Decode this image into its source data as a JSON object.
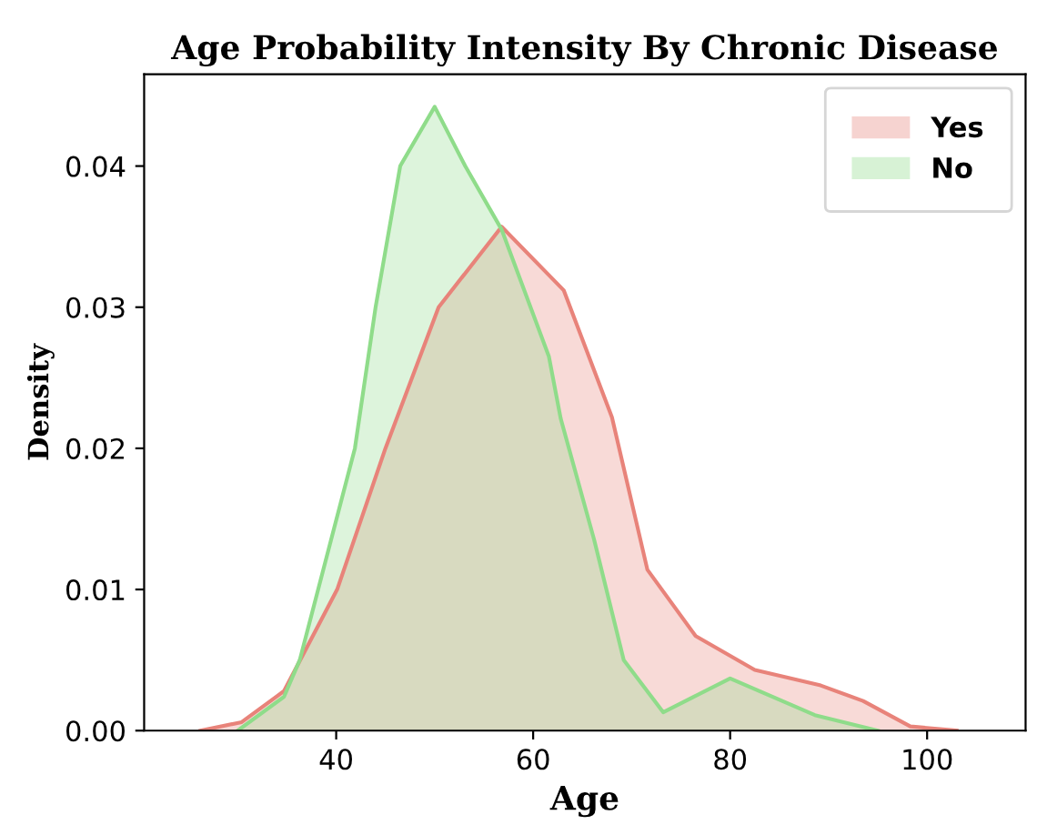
{
  "chart_data": {
    "type": "area",
    "title": "Age Probability Intensity By Chronic Disease",
    "xlabel": "Age",
    "ylabel": "Density",
    "series": [
      {
        "name": "Yes",
        "color": "#e8837a",
        "x": [
          26.2,
          30.4,
          34.7,
          40.1,
          45,
          50.4,
          56.8,
          63.1,
          68,
          71.6,
          76.5,
          82.5,
          89.2,
          93.5,
          98.3,
          103
        ],
        "values": [
          0,
          0.0006,
          0.0028,
          0.01,
          0.02,
          0.03,
          0.0357,
          0.0312,
          0.0222,
          0.0114,
          0.0067,
          0.0043,
          0.0032,
          0.0021,
          0.0003,
          0
        ]
      },
      {
        "name": "No",
        "color": "#8fdc8a",
        "x": [
          30,
          34.7,
          36.3,
          41.9,
          44,
          46.5,
          50,
          53.1,
          56.8,
          61.6,
          62.8,
          66.2,
          69.2,
          73.2,
          80,
          88.6,
          95
        ],
        "values": [
          0,
          0.0024,
          0.005,
          0.02,
          0.03,
          0.04,
          0.0442,
          0.04,
          0.0355,
          0.0265,
          0.0221,
          0.0135,
          0.005,
          0.0013,
          0.0037,
          0.0011,
          0
        ]
      }
    ],
    "xlim": [
      20.5,
      110
    ],
    "xticks": [
      40,
      60,
      80,
      100
    ],
    "ylim": [
      0,
      0.0465
    ],
    "yticks": [
      {
        "value": 0,
        "label": "0.00"
      },
      {
        "value": 0.01,
        "label": "0.01"
      },
      {
        "value": 0.02,
        "label": "0.02"
      },
      {
        "value": 0.03,
        "label": "0.03"
      },
      {
        "value": 0.04,
        "label": "0.04"
      }
    ],
    "grid": false,
    "legend": "top right"
  }
}
